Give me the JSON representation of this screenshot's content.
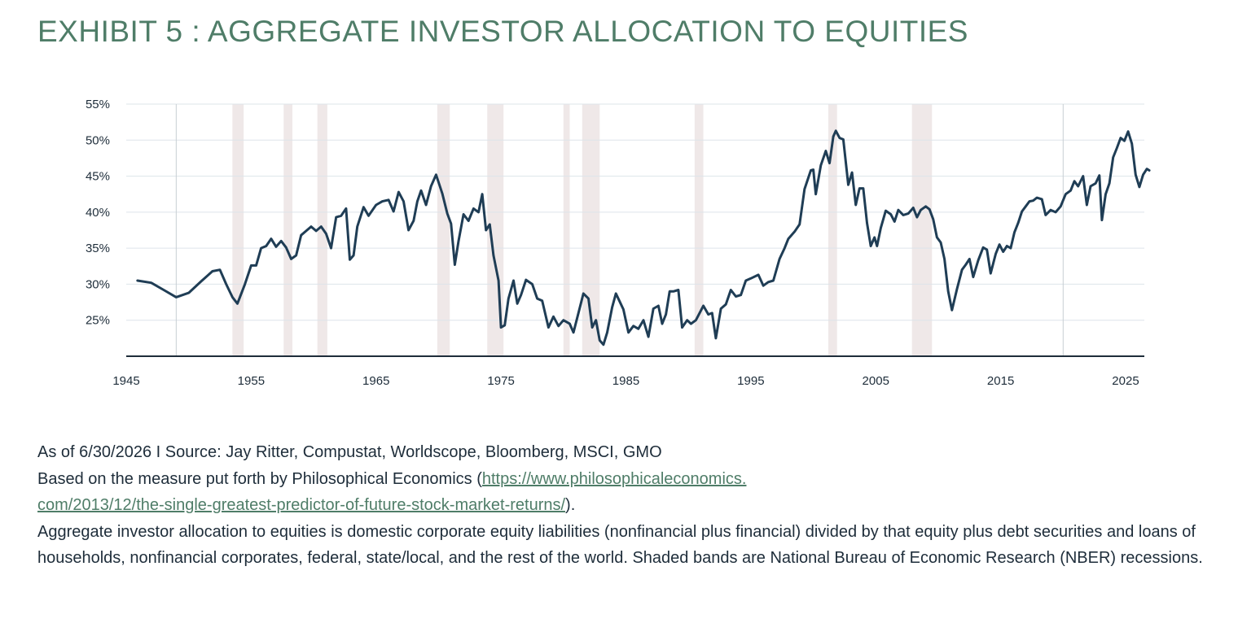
{
  "title": "EXHIBIT 5 : AGGREGATE INVESTOR ALLOCATION TO EQUITIES",
  "notes": {
    "line1": "As of 6/30/2026 I Source: Jay Ritter, Compustat, Worldscope, Bloomberg, MSCI, GMO",
    "line2_prefix": "Based on the measure put forth by Philosophical Economics (",
    "link_part1": "https://www.philosophicaleconomics.",
    "link_part2": "com/2013/12/the-single-greatest-predictor-of-future-stock-market-returns/",
    "line3_suffix": ").",
    "line4": "Aggregate investor allocation to equities is domestic corporate equity liabilities (nonfinancial plus financial) divided by that equity plus debt securities and loans of households, nonfinancial corporates, federal, state/local, and the rest of the world. Shaded bands are National Bureau of Economic Research (NBER) recessions."
  },
  "colors": {
    "title": "#4f7d68",
    "line": "#1f3d55",
    "grid": "#dde4ea",
    "recession": "#efe8e8",
    "axis": "#1e2d3a",
    "text": "#1e2d3a"
  },
  "chart_data": {
    "type": "line",
    "title": "",
    "xlabel": "",
    "ylabel": "",
    "xlim": [
      1945,
      2026.5
    ],
    "ylim": [
      20,
      55
    ],
    "x_ticks": [
      1945,
      1955,
      1965,
      1975,
      1985,
      1995,
      2005,
      2015,
      2025
    ],
    "x_tick_labels": [
      "1945",
      "1955",
      "1965",
      "1975",
      "1985",
      "1995",
      "2005",
      "2015",
      "2025"
    ],
    "y_ticks": [
      25,
      30,
      35,
      40,
      45,
      50,
      55
    ],
    "y_tick_labels": [
      "25%",
      "30%",
      "35%",
      "40%",
      "45%",
      "50%",
      "55%"
    ],
    "grid": true,
    "reference_lines_x": [
      1949,
      2020
    ],
    "recessions": [
      [
        1953.5,
        1954.4
      ],
      [
        1957.6,
        1958.3
      ],
      [
        1960.3,
        1961.1
      ],
      [
        1969.9,
        1970.9
      ],
      [
        1973.9,
        1975.2
      ],
      [
        1980.0,
        1980.5
      ],
      [
        1981.5,
        1982.9
      ],
      [
        1990.5,
        1991.2
      ],
      [
        2001.2,
        2001.9
      ],
      [
        2007.9,
        2009.5
      ]
    ],
    "series": [
      {
        "values": [
          [
            1945.9,
            30.5
          ],
          [
            1947.0,
            30.2
          ],
          [
            1948.0,
            29.2
          ],
          [
            1949.0,
            28.2
          ],
          [
            1950.0,
            28.8
          ],
          [
            1951.0,
            30.4
          ],
          [
            1951.9,
            31.8
          ],
          [
            1952.5,
            32.0
          ],
          [
            1953.0,
            30.0
          ],
          [
            1953.5,
            28.2
          ],
          [
            1953.9,
            27.3
          ],
          [
            1954.5,
            30.0
          ],
          [
            1955.0,
            32.6
          ],
          [
            1955.4,
            32.6
          ],
          [
            1955.8,
            35.0
          ],
          [
            1956.2,
            35.3
          ],
          [
            1956.6,
            36.3
          ],
          [
            1957.0,
            35.2
          ],
          [
            1957.4,
            36.0
          ],
          [
            1957.8,
            35.1
          ],
          [
            1958.2,
            33.5
          ],
          [
            1958.6,
            34.0
          ],
          [
            1959.0,
            36.8
          ],
          [
            1959.4,
            37.4
          ],
          [
            1959.8,
            38.0
          ],
          [
            1960.2,
            37.4
          ],
          [
            1960.6,
            38.0
          ],
          [
            1961.0,
            37.0
          ],
          [
            1961.4,
            35.0
          ],
          [
            1961.8,
            39.3
          ],
          [
            1962.2,
            39.5
          ],
          [
            1962.6,
            40.5
          ],
          [
            1962.9,
            33.4
          ],
          [
            1963.2,
            34.0
          ],
          [
            1963.5,
            38.0
          ],
          [
            1964.0,
            40.7
          ],
          [
            1964.4,
            39.5
          ],
          [
            1965.0,
            41.0
          ],
          [
            1965.5,
            41.5
          ],
          [
            1966.0,
            41.7
          ],
          [
            1966.4,
            40.1
          ],
          [
            1966.8,
            42.8
          ],
          [
            1967.2,
            41.5
          ],
          [
            1967.6,
            37.5
          ],
          [
            1968.0,
            38.8
          ],
          [
            1968.3,
            41.5
          ],
          [
            1968.6,
            43.0
          ],
          [
            1969.0,
            41.0
          ],
          [
            1969.4,
            43.6
          ],
          [
            1969.8,
            45.2
          ],
          [
            1970.3,
            42.6
          ],
          [
            1970.7,
            39.8
          ],
          [
            1971.0,
            38.4
          ],
          [
            1971.3,
            32.7
          ],
          [
            1971.6,
            36.0
          ],
          [
            1972.0,
            39.7
          ],
          [
            1972.4,
            38.8
          ],
          [
            1972.8,
            40.5
          ],
          [
            1973.2,
            40.0
          ],
          [
            1973.5,
            42.5
          ],
          [
            1973.8,
            37.5
          ],
          [
            1974.1,
            38.3
          ],
          [
            1974.4,
            34.0
          ],
          [
            1974.8,
            30.5
          ],
          [
            1975.0,
            24.0
          ],
          [
            1975.3,
            24.3
          ],
          [
            1975.6,
            28.0
          ],
          [
            1976.0,
            30.5
          ],
          [
            1976.3,
            27.3
          ],
          [
            1976.6,
            28.5
          ],
          [
            1977.0,
            30.6
          ],
          [
            1977.5,
            30.0
          ],
          [
            1977.9,
            28.0
          ],
          [
            1978.3,
            27.7
          ],
          [
            1978.8,
            24.0
          ],
          [
            1979.2,
            25.5
          ],
          [
            1979.6,
            24.2
          ],
          [
            1980.0,
            25.0
          ],
          [
            1980.5,
            24.5
          ],
          [
            1980.8,
            23.3
          ],
          [
            1981.2,
            26.0
          ],
          [
            1981.6,
            28.7
          ],
          [
            1982.0,
            28.0
          ],
          [
            1982.3,
            24.0
          ],
          [
            1982.6,
            25.0
          ],
          [
            1982.9,
            22.2
          ],
          [
            1983.2,
            21.6
          ],
          [
            1983.5,
            23.3
          ],
          [
            1983.9,
            26.8
          ],
          [
            1984.2,
            28.7
          ],
          [
            1984.8,
            26.5
          ],
          [
            1985.2,
            23.3
          ],
          [
            1985.6,
            24.2
          ],
          [
            1986.0,
            23.8
          ],
          [
            1986.4,
            25.0
          ],
          [
            1986.8,
            22.7
          ],
          [
            1987.2,
            26.6
          ],
          [
            1987.6,
            27.0
          ],
          [
            1987.9,
            24.5
          ],
          [
            1988.2,
            25.8
          ],
          [
            1988.5,
            29.0
          ],
          [
            1988.8,
            29.0
          ],
          [
            1989.2,
            29.2
          ],
          [
            1989.5,
            24.0
          ],
          [
            1989.9,
            25.0
          ],
          [
            1990.2,
            24.5
          ],
          [
            1990.6,
            25.0
          ],
          [
            1991.2,
            27.0
          ],
          [
            1991.6,
            25.8
          ],
          [
            1991.9,
            26.0
          ],
          [
            1992.2,
            22.5
          ],
          [
            1992.6,
            26.6
          ],
          [
            1993.0,
            27.2
          ],
          [
            1993.4,
            29.2
          ],
          [
            1993.8,
            28.3
          ],
          [
            1994.2,
            28.5
          ],
          [
            1994.6,
            30.5
          ],
          [
            1995.0,
            30.8
          ],
          [
            1995.6,
            31.3
          ],
          [
            1996.0,
            29.8
          ],
          [
            1996.4,
            30.3
          ],
          [
            1996.8,
            30.5
          ],
          [
            1997.3,
            33.5
          ],
          [
            1997.7,
            35.0
          ],
          [
            1998.0,
            36.3
          ],
          [
            1998.5,
            37.3
          ],
          [
            1998.9,
            38.3
          ],
          [
            1999.3,
            43.2
          ],
          [
            1999.8,
            45.8
          ],
          [
            2000.0,
            45.9
          ],
          [
            2000.2,
            42.5
          ],
          [
            2000.6,
            46.5
          ],
          [
            2001.0,
            48.5
          ],
          [
            2001.3,
            46.8
          ],
          [
            2001.6,
            50.5
          ],
          [
            2001.8,
            51.3
          ],
          [
            2002.1,
            50.3
          ],
          [
            2002.4,
            50.1
          ],
          [
            2002.8,
            43.8
          ],
          [
            2003.1,
            45.5
          ],
          [
            2003.4,
            41.0
          ],
          [
            2003.7,
            43.3
          ],
          [
            2004.0,
            43.3
          ],
          [
            2004.3,
            38.5
          ],
          [
            2004.6,
            35.3
          ],
          [
            2004.9,
            36.5
          ],
          [
            2005.1,
            35.3
          ],
          [
            2005.4,
            37.8
          ],
          [
            2005.8,
            40.2
          ],
          [
            2006.2,
            39.7
          ],
          [
            2006.5,
            38.7
          ],
          [
            2006.8,
            40.3
          ],
          [
            2007.2,
            39.6
          ],
          [
            2007.6,
            39.8
          ],
          [
            2008.0,
            40.6
          ],
          [
            2008.3,
            39.3
          ],
          [
            2008.6,
            40.3
          ],
          [
            2009.0,
            40.8
          ],
          [
            2009.3,
            40.4
          ],
          [
            2009.6,
            39.0
          ],
          [
            2009.9,
            36.5
          ],
          [
            2010.2,
            35.8
          ],
          [
            2010.5,
            33.5
          ],
          [
            2010.8,
            29.0
          ],
          [
            2011.1,
            26.4
          ],
          [
            2011.5,
            29.3
          ],
          [
            2011.9,
            32.0
          ],
          [
            2012.2,
            32.7
          ],
          [
            2012.5,
            33.5
          ],
          [
            2012.8,
            31.0
          ],
          [
            2013.2,
            33.3
          ],
          [
            2013.6,
            35.1
          ],
          [
            2013.9,
            34.8
          ],
          [
            2014.2,
            31.5
          ],
          [
            2014.6,
            34.2
          ],
          [
            2014.9,
            35.5
          ],
          [
            2015.2,
            34.5
          ],
          [
            2015.5,
            35.3
          ],
          [
            2015.8,
            35.0
          ],
          [
            2016.1,
            37.2
          ],
          [
            2016.4,
            38.5
          ],
          [
            2016.7,
            40.1
          ],
          [
            2017.0,
            40.8
          ],
          [
            2017.3,
            41.5
          ],
          [
            2017.6,
            41.6
          ],
          [
            2017.9,
            42.0
          ],
          [
            2018.3,
            41.8
          ],
          [
            2018.6,
            39.6
          ],
          [
            2019.0,
            40.3
          ],
          [
            2019.4,
            40.0
          ],
          [
            2019.8,
            40.8
          ],
          [
            2020.2,
            42.5
          ],
          [
            2020.6,
            43.0
          ],
          [
            2020.9,
            44.3
          ],
          [
            2021.2,
            43.6
          ],
          [
            2021.6,
            45.0
          ],
          [
            2021.9,
            41.0
          ],
          [
            2022.2,
            43.6
          ],
          [
            2022.6,
            44.0
          ],
          [
            2022.9,
            45.1
          ],
          [
            2023.1,
            38.9
          ],
          [
            2023.4,
            42.5
          ],
          [
            2023.7,
            44.0
          ],
          [
            2024.0,
            47.6
          ],
          [
            2024.3,
            48.9
          ],
          [
            2024.6,
            50.3
          ],
          [
            2024.9,
            49.9
          ],
          [
            2025.2,
            51.2
          ],
          [
            2025.5,
            49.5
          ],
          [
            2025.8,
            45.2
          ],
          [
            2026.1,
            43.5
          ],
          [
            2026.4,
            45.2
          ],
          [
            2026.7,
            46.0
          ],
          [
            2026.9,
            45.8
          ]
        ]
      }
    ]
  }
}
